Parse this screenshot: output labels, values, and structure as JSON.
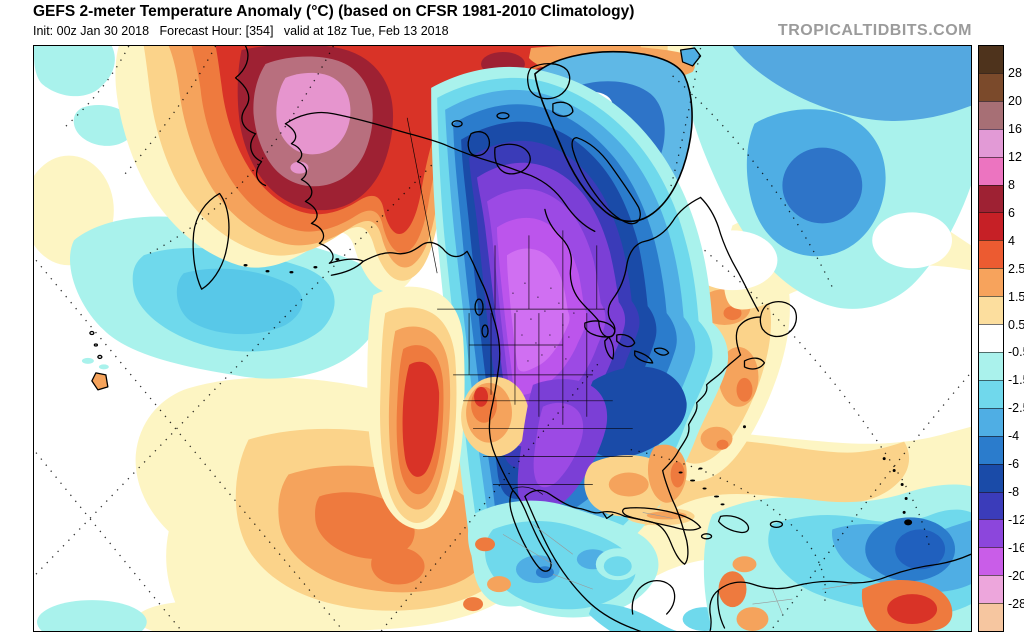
{
  "header": {
    "title": "GEFS 2-meter Temperature Anomaly (°C) (based on CFSR 1981-2010 Climatology)",
    "subtitle": "Init: 00z Jan 30 2018   Forecast Hour: [354]   valid at 18z Tue, Feb 13 2018",
    "watermark": "TROPICALTIDBITS.COM"
  },
  "colorbar": {
    "units": "°C",
    "tick_labels": [
      "28",
      "20",
      "16",
      "12",
      "8",
      "6",
      "4",
      "2.5",
      "1.5",
      "0.5",
      "-0.5",
      "-1.5",
      "-2.5",
      "-4",
      "-6",
      "-8",
      "-12",
      "-16",
      "-20",
      "-28"
    ],
    "blocks": [
      {
        "color": "#4E331C",
        "label": "28"
      },
      {
        "color": "#7B4A2B",
        "label": "20"
      },
      {
        "color": "#A76F75",
        "label": "16"
      },
      {
        "color": "#E29AD6",
        "label": "12"
      },
      {
        "color": "#EC74C0",
        "label": "8"
      },
      {
        "color": "#9E2133",
        "label": "6"
      },
      {
        "color": "#C62026",
        "label": "4"
      },
      {
        "color": "#EC5B31",
        "label": "2.5"
      },
      {
        "color": "#F7A35C",
        "label": "1.5"
      },
      {
        "color": "#FCDE9E",
        "label": "0.5"
      },
      {
        "color": "#FFFFFF",
        "label": "-0.5"
      },
      {
        "color": "#AAF2EC",
        "label": "-1.5"
      },
      {
        "color": "#70D8EC",
        "label": "-2.5"
      },
      {
        "color": "#4FAEE4",
        "label": "-4"
      },
      {
        "color": "#2B7CCC",
        "label": "-6"
      },
      {
        "color": "#1A4BA8",
        "label": "-8"
      },
      {
        "color": "#3B3CBA",
        "label": "-12"
      },
      {
        "color": "#8C46DC",
        "label": "-16"
      },
      {
        "color": "#C95DE8",
        "label": "-20"
      },
      {
        "color": "#EDA6DC",
        "label": "-28"
      },
      {
        "color": "#F6C6A0",
        "label": ""
      }
    ]
  },
  "map": {
    "palette": {
      "white": "#FFFFFF",
      "paleYellow": "#FDF5C3",
      "lightOrange": "#FBD38A",
      "orange": "#F5A35C",
      "deepOrange": "#EE7A3E",
      "red": "#D93327",
      "maroon": "#9E2133",
      "rose": "#B86F7E",
      "pink": "#E695CE",
      "paleCyan": "#A9F2EC",
      "cyan": "#6FD9EC",
      "cyan2": "#58C8E8",
      "lightBlue": "#4FAEE4",
      "blue": "#2B7CCC",
      "blueCore": "#2E74C8",
      "navy": "#1A4BA8",
      "indigo": "#3A3BB8",
      "purple": "#7B3FD6",
      "violet": "#9C4AE4",
      "magenta": "#BC55EC",
      "magentaCore": "#D06FF2",
      "greenlandBase": "#5FB8E6",
      "atlanticBand": "#54A8E0",
      "saBlue": "#2060BE"
    },
    "regions": [
      {
        "name": "siberia-alaska-warm-core",
        "description": "+8 to +20 °C anomaly over E Siberia / Alaska (red-maroon with pink core)"
      },
      {
        "name": "north-america-cold-pool",
        "description": "-8 to -20 °C anomaly over Canada / central US (blue to bright magenta core)"
      },
      {
        "name": "west-us-warm",
        "description": "+3 to +6 °C anomaly over California / Southwest US"
      },
      {
        "name": "greenland-arctic-cold",
        "description": "-2 to -6 °C over Greenland and Arctic islands"
      },
      {
        "name": "north-atlantic-cool",
        "description": "-1 to -4 °C over North Atlantic"
      },
      {
        "name": "pacific-cool-blob",
        "description": "-1 to -2.5 °C cool blob NE of Hawaii"
      },
      {
        "name": "subtropical-atlantic-warm",
        "description": "+1 to +3 °C band along US east coast and Caribbean"
      },
      {
        "name": "south-america-cool",
        "description": "-1 to -6 °C over Venezuela/Colombia with warm spot over Brazil"
      }
    ]
  }
}
